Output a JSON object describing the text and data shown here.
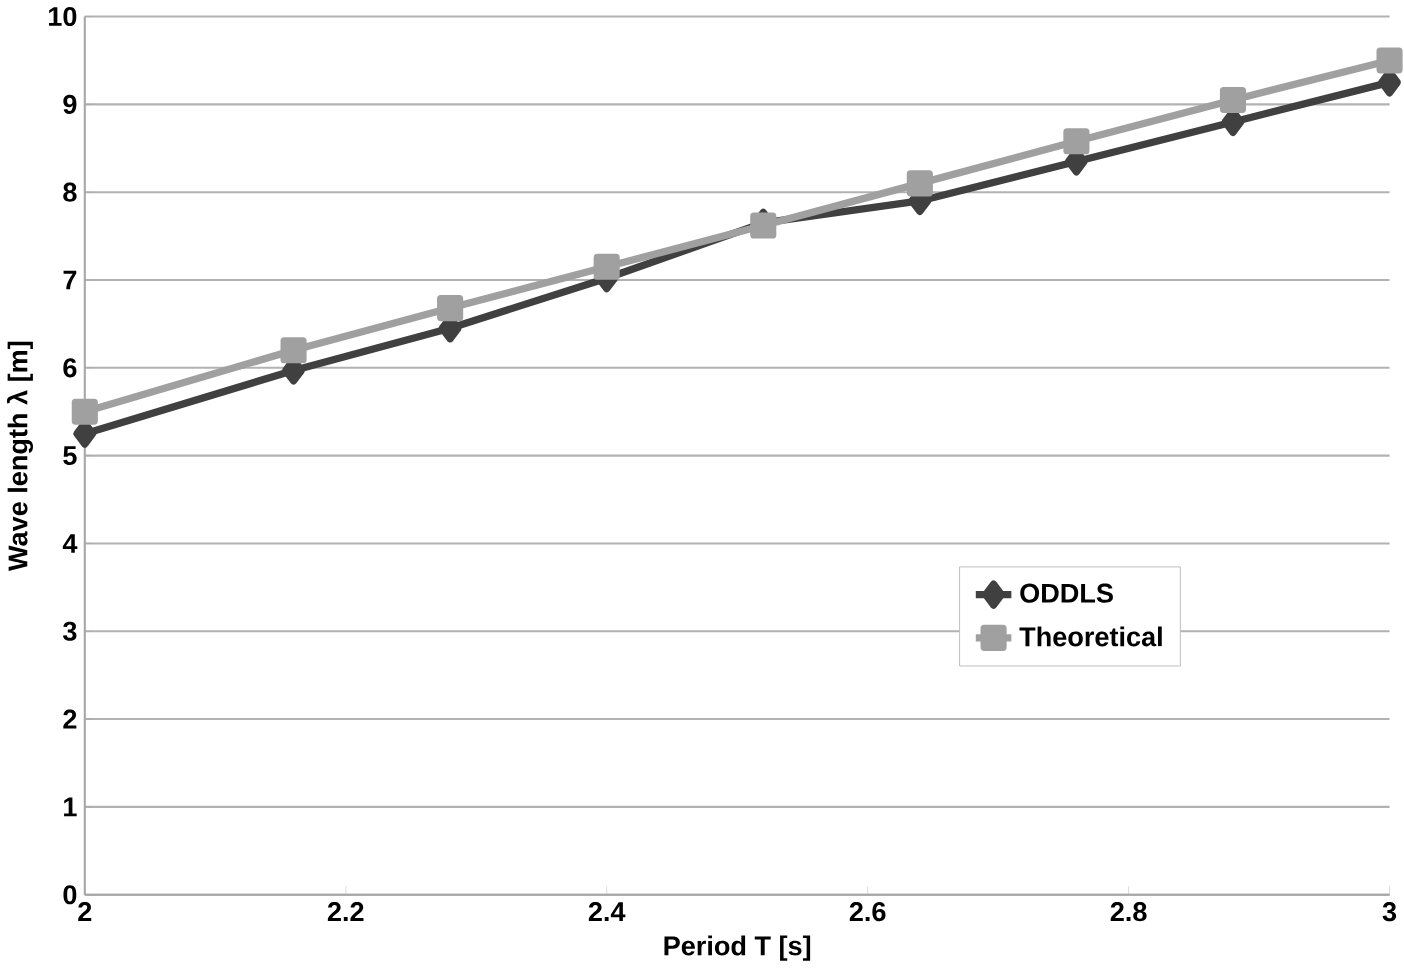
{
  "chart_data": {
    "type": "line",
    "xlabel": "Period T [s]",
    "ylabel": "Wave length λ [m]",
    "x": [
      2,
      2.16,
      2.28,
      2.4,
      2.52,
      2.64,
      2.76,
      2.88,
      3
    ],
    "series": [
      {
        "name": "ODDLS",
        "color": "#404040",
        "marker": "diamond",
        "values": [
          5.25,
          5.97,
          6.45,
          7.02,
          7.65,
          7.9,
          8.35,
          8.8,
          9.25
        ]
      },
      {
        "name": "Theoretical",
        "color": "#a0a0a0",
        "marker": "square",
        "values": [
          5.5,
          6.2,
          6.68,
          7.15,
          7.62,
          8.1,
          8.58,
          9.05,
          9.5
        ]
      }
    ],
    "xlim": [
      2,
      3
    ],
    "xticks": [
      2,
      2.2,
      2.4,
      2.6,
      2.8,
      3
    ],
    "ylim": [
      0,
      10
    ],
    "yticks": [
      0,
      1,
      2,
      3,
      4,
      5,
      6,
      7,
      8,
      9,
      10
    ],
    "grid": "y",
    "legend": "right",
    "line_style": "solid"
  }
}
